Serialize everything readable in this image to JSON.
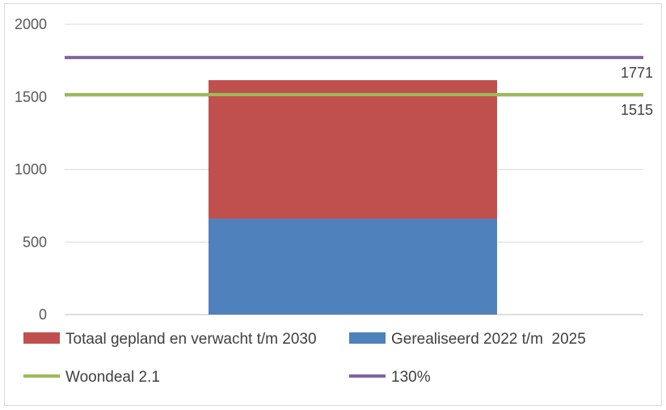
{
  "chart_data": {
    "type": "bar",
    "stacked": true,
    "categories": [
      ""
    ],
    "ylim": [
      0,
      2000
    ],
    "y_ticks": [
      0,
      500,
      1000,
      1500,
      2000
    ],
    "grid": true,
    "legend_position": "bottom",
    "series": [
      {
        "name": "Gerealiseerd 2022 t/m  2025",
        "values": [
          660
        ],
        "color": "#4f81bd"
      },
      {
        "name": "Totaal gepland en verwacht t/m 2030",
        "values": [
          955
        ],
        "color": "#c0504d"
      }
    ],
    "lines": [
      {
        "name": "Woondeal 2.1",
        "value": 1515,
        "label": "1515",
        "color": "#9bbb59"
      },
      {
        "name": "130%",
        "value": 1771,
        "label": "1771",
        "color": "#8064a2"
      }
    ],
    "legend": [
      {
        "name": "Totaal gepland en verwacht t/m 2030",
        "kind": "box",
        "color": "#c0504d"
      },
      {
        "name": "Gerealiseerd 2022 t/m  2025",
        "kind": "box",
        "color": "#4f81bd"
      },
      {
        "name": "Woondeal 2.1",
        "kind": "line",
        "color": "#9bbb59"
      },
      {
        "name": "130%",
        "kind": "line",
        "color": "#8064a2"
      }
    ]
  }
}
